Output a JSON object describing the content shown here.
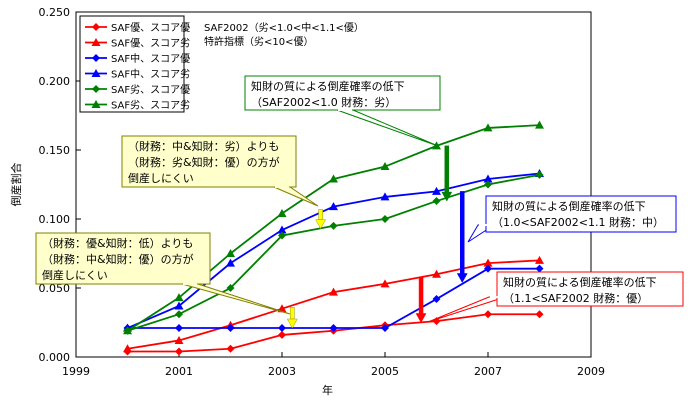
{
  "chart_data": {
    "type": "line",
    "xlabel": "年",
    "ylabel": "倒産割合",
    "xlim": [
      1999,
      2009
    ],
    "ylim": [
      0,
      0.25
    ],
    "x_ticks": [
      "1999",
      "2001",
      "2003",
      "2005",
      "2007",
      "2009"
    ],
    "y_ticks": [
      "0.000",
      "0.050",
      "0.100",
      "0.150",
      "0.200",
      "0.250"
    ],
    "grid": false,
    "legend_position": "top-left",
    "x": [
      2000,
      2001,
      2002,
      2003,
      2004,
      2005,
      2006,
      2007,
      2008
    ],
    "series": [
      {
        "name": "SAF優、スコア優",
        "color": "#ff0000",
        "marker": "diamond",
        "values": [
          0.004,
          0.004,
          0.006,
          0.016,
          0.019,
          0.023,
          0.026,
          0.031,
          0.031
        ]
      },
      {
        "name": "SAF優、スコア劣",
        "color": "#ff0000",
        "marker": "triangle",
        "values": [
          0.006,
          0.012,
          0.023,
          0.035,
          0.047,
          0.053,
          0.06,
          0.068,
          0.07
        ]
      },
      {
        "name": "SAF中、スコア優",
        "color": "#0000ff",
        "marker": "diamond",
        "values": [
          0.021,
          0.021,
          0.021,
          0.021,
          0.021,
          0.021,
          0.042,
          0.064,
          0.064
        ]
      },
      {
        "name": "SAF中、スコア劣",
        "color": "#0000ff",
        "marker": "triangle",
        "values": [
          0.021,
          0.037,
          0.068,
          0.092,
          0.109,
          0.116,
          0.12,
          0.129,
          0.133
        ]
      },
      {
        "name": "SAF劣、スコア優",
        "color": "#008000",
        "marker": "diamond",
        "values": [
          0.019,
          0.031,
          0.05,
          0.088,
          0.095,
          0.1,
          0.113,
          0.125,
          0.132
        ]
      },
      {
        "name": "SAF劣、スコア劣",
        "color": "#008000",
        "marker": "triangle",
        "values": [
          0.019,
          0.043,
          0.075,
          0.104,
          0.129,
          0.138,
          0.153,
          0.166,
          0.168
        ]
      }
    ],
    "notes": [
      "SAF2002（劣<1.0<中<1.1<優）",
      "特許指標（劣<10<優）"
    ],
    "callouts": [
      {
        "id": "green",
        "lines": [
          "知財の質による倒産確率の低下",
          "（SAF2002<1.0 財務：劣）"
        ],
        "color": "#008000"
      },
      {
        "id": "blue",
        "lines": [
          "知財の質による倒産確率の低下",
          "（1.0<SAF2002<1.1 財務：中）"
        ],
        "color": "#0000ff"
      },
      {
        "id": "red",
        "lines": [
          "知財の質による倒産確率の低下",
          "（1.1<SAF2002 財務：優）"
        ],
        "color": "#ff0000"
      },
      {
        "id": "yellow1",
        "lines": [
          "（財務：中&知財：劣）よりも",
          "（財務：劣&知財：優）の方が",
          "倒産しにくい"
        ],
        "color": "#ffff00"
      },
      {
        "id": "yellow2",
        "lines": [
          "（財務：優&知財：低）よりも",
          "（財務：中&知財：優）の方が",
          "倒産しにくい"
        ],
        "color": "#ffff00"
      }
    ],
    "arrows": [
      {
        "id": "green",
        "color": "#008000",
        "x": 2006.2,
        "from": 0.153,
        "to": 0.113
      },
      {
        "id": "blue",
        "color": "#0000ff",
        "x": 2006.5,
        "from": 0.12,
        "to": 0.054
      },
      {
        "id": "red",
        "color": "#ff0000",
        "x": 2005.7,
        "from": 0.058,
        "to": 0.025
      },
      {
        "id": "yellow1",
        "color": "#ffff00",
        "x": 2003.75,
        "from": 0.107,
        "to": 0.093
      },
      {
        "id": "yellow2",
        "color": "#ffff00",
        "x": 2003.2,
        "from": 0.036,
        "to": 0.021
      }
    ]
  }
}
